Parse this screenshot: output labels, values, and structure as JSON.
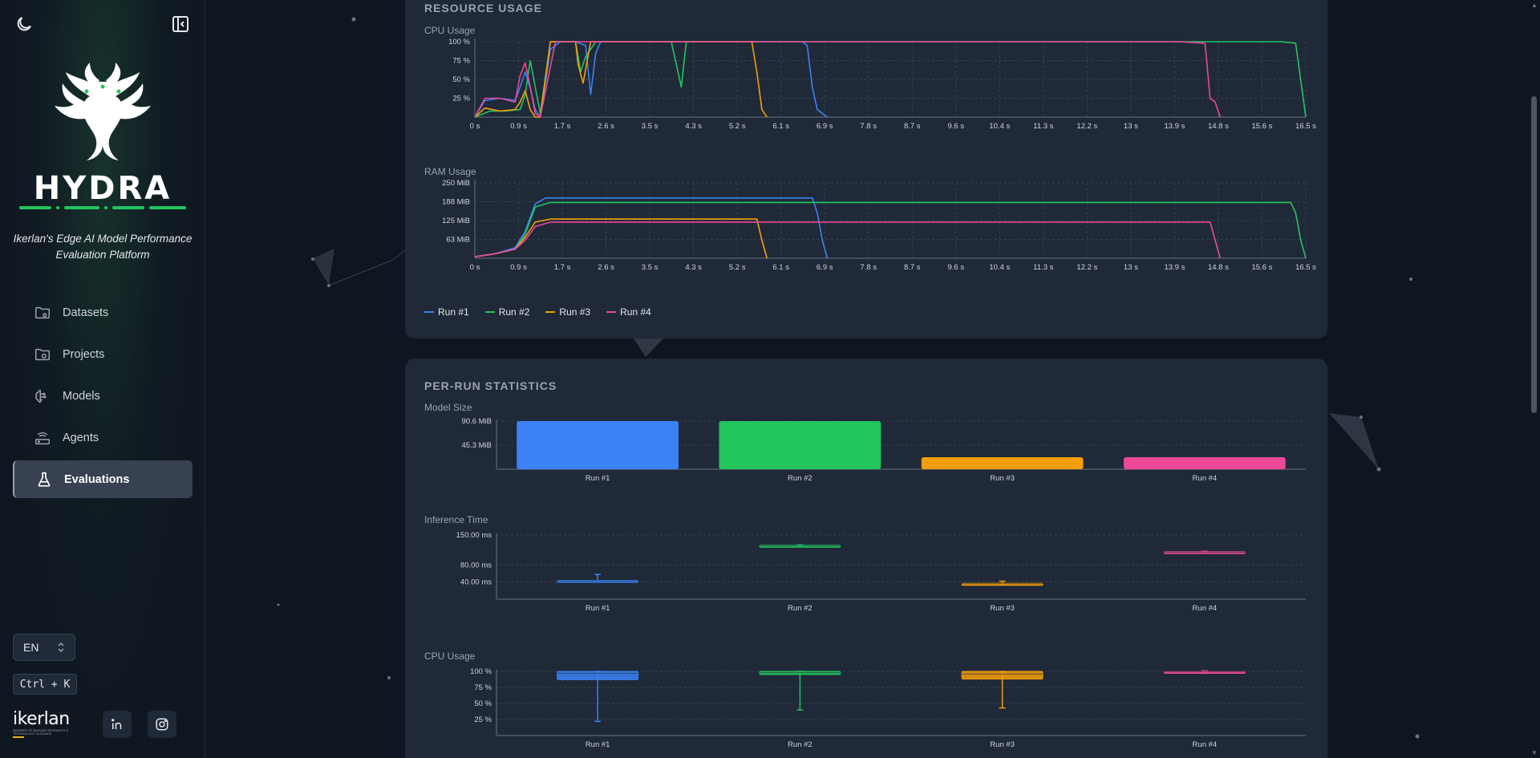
{
  "sidebar": {
    "brand": "HYDRA",
    "tagline": "Ikerlan's Edge AI Model Performance Evaluation Platform",
    "items": [
      {
        "label": "Datasets",
        "icon": "folder-icon",
        "active": false
      },
      {
        "label": "Projects",
        "icon": "folder-settings-icon",
        "active": false
      },
      {
        "label": "Models",
        "icon": "brain-icon",
        "active": false
      },
      {
        "label": "Agents",
        "icon": "router-icon",
        "active": false
      },
      {
        "label": "Evaluations",
        "icon": "flask-icon",
        "active": true
      }
    ],
    "language": "EN",
    "shortcut": "Ctrl + K",
    "org_logo": "ikerlan",
    "org_logo_sub": "MEMBER OF BASQUE RESEARCH & TECHNOLOGY ALLIANCE"
  },
  "resource_usage": {
    "title": "RESOURCE USAGE",
    "cpu_title": "CPU Usage",
    "ram_title": "RAM Usage"
  },
  "per_run": {
    "title": "PER-RUN STATISTICS",
    "model_size_title": "Model Size",
    "inference_title": "Inference Time",
    "cpu_title": "CPU Usage"
  },
  "colors": {
    "run1": "#3b82f6",
    "run2": "#22c55e",
    "run3": "#f59e0b",
    "run4": "#ec4899"
  },
  "chart_data": [
    {
      "type": "line",
      "title": "CPU Usage",
      "x_ticks": [
        "0 s",
        "0.9 s",
        "1.7 s",
        "2.6 s",
        "3.5 s",
        "4.3 s",
        "5.2 s",
        "6.1 s",
        "6.9 s",
        "7.8 s",
        "8.7 s",
        "9.6 s",
        "10.4 s",
        "11.3 s",
        "12.2 s",
        "13 s",
        "13.9 s",
        "14.8 s",
        "15.6 s",
        "16.5 s"
      ],
      "y_ticks": [
        "25 %",
        "50 %",
        "75 %",
        "100 %"
      ],
      "xlim": [
        0,
        16.5
      ],
      "ylim": [
        0,
        100
      ],
      "series": [
        {
          "name": "Run #1",
          "x": [
            0,
            0.2,
            0.5,
            0.8,
            0.9,
            1.0,
            1.1,
            1.2,
            1.3,
            1.5,
            1.7,
            2.0,
            2.2,
            2.3,
            2.4,
            2.5,
            3,
            4,
            5,
            6,
            6.5,
            6.6,
            6.7,
            6.8,
            6.9,
            7.0
          ],
          "y": [
            0,
            22,
            25,
            22,
            40,
            60,
            38,
            10,
            0,
            90,
            100,
            100,
            95,
            30,
            85,
            100,
            100,
            100,
            100,
            100,
            100,
            95,
            40,
            10,
            5,
            0
          ]
        },
        {
          "name": "Run #2",
          "x": [
            0,
            0.3,
            0.6,
            0.9,
            1.0,
            1.1,
            1.2,
            1.3,
            1.5,
            2.0,
            2.1,
            2.2,
            2.4,
            3,
            3.9,
            4.0,
            4.1,
            4.2,
            5,
            8,
            10,
            12,
            14,
            15,
            16,
            16.3,
            16.5
          ],
          "y": [
            0,
            8,
            8,
            10,
            30,
            75,
            40,
            5,
            100,
            100,
            60,
            80,
            100,
            100,
            100,
            70,
            40,
            100,
            100,
            100,
            100,
            100,
            100,
            100,
            100,
            98,
            0
          ]
        },
        {
          "name": "Run #3",
          "x": [
            0,
            0.2,
            0.5,
            0.8,
            0.9,
            1.0,
            1.1,
            1.2,
            1.3,
            1.5,
            2.0,
            2.05,
            2.15,
            2.3,
            2.5,
            3,
            4,
            5,
            5.5,
            5.6,
            5.7,
            5.8
          ],
          "y": [
            0,
            12,
            8,
            10,
            20,
            35,
            10,
            0,
            0,
            100,
            100,
            70,
            45,
            100,
            100,
            100,
            100,
            100,
            100,
            60,
            10,
            0
          ]
        },
        {
          "name": "Run #4",
          "x": [
            0,
            0.2,
            0.5,
            0.8,
            0.9,
            1.0,
            1.1,
            1.2,
            1.3,
            1.6,
            2,
            4,
            6,
            8,
            10,
            12,
            14,
            14.5,
            14.6,
            14.7,
            14.8
          ],
          "y": [
            0,
            25,
            25,
            20,
            55,
            72,
            40,
            5,
            0,
            100,
            100,
            100,
            100,
            100,
            100,
            100,
            100,
            98,
            25,
            20,
            0
          ]
        }
      ]
    },
    {
      "type": "line",
      "title": "RAM Usage",
      "x_ticks": [
        "0 s",
        "0.9 s",
        "1.7 s",
        "2.6 s",
        "3.5 s",
        "4.3 s",
        "5.2 s",
        "6.1 s",
        "6.9 s",
        "7.8 s",
        "8.7 s",
        "9.6 s",
        "10.4 s",
        "11.3 s",
        "12.2 s",
        "13 s",
        "13.9 s",
        "14.8 s",
        "15.6 s",
        "16.5 s"
      ],
      "y_ticks": [
        "63 MiB",
        "125 MiB",
        "188 MiB",
        "250 MiB"
      ],
      "xlim": [
        0,
        16.5
      ],
      "ylim": [
        0,
        250
      ],
      "series": [
        {
          "name": "Run #1",
          "x": [
            0,
            0.4,
            0.8,
            1.0,
            1.2,
            1.4,
            6.7,
            6.8,
            6.9,
            7.0
          ],
          "y": [
            5,
            15,
            35,
            90,
            180,
            200,
            200,
            150,
            60,
            0
          ]
        },
        {
          "name": "Run #2",
          "x": [
            0,
            0.4,
            0.8,
            1.0,
            1.2,
            1.5,
            16.2,
            16.3,
            16.4,
            16.5
          ],
          "y": [
            5,
            15,
            30,
            80,
            170,
            185,
            185,
            150,
            60,
            0
          ]
        },
        {
          "name": "Run #3",
          "x": [
            0,
            0.4,
            0.8,
            1.0,
            1.2,
            1.5,
            5.6,
            5.7,
            5.8
          ],
          "y": [
            5,
            15,
            30,
            70,
            120,
            130,
            130,
            60,
            0
          ]
        },
        {
          "name": "Run #4",
          "x": [
            0,
            0.4,
            0.8,
            1.0,
            1.2,
            1.5,
            14.6,
            14.7,
            14.8
          ],
          "y": [
            5,
            15,
            30,
            60,
            105,
            120,
            120,
            60,
            0
          ]
        }
      ]
    },
    {
      "type": "bar",
      "title": "Model Size",
      "categories": [
        "Run #1",
        "Run #2",
        "Run #3",
        "Run #4"
      ],
      "values": [
        90.6,
        90.6,
        22.6,
        22.6
      ],
      "y_ticks": [
        "45.3 MiB",
        "90.6 MiB"
      ],
      "ylim": [
        0,
        90.6
      ]
    },
    {
      "type": "box",
      "title": "Inference Time",
      "categories": [
        "Run #1",
        "Run #2",
        "Run #3",
        "Run #4"
      ],
      "y_ticks": [
        "40.00 ms",
        "80.00 ms",
        "150.00 ms"
      ],
      "ylim": [
        0,
        150
      ],
      "boxes": [
        {
          "min": 42,
          "q1": 42,
          "median": 43,
          "q3": 44,
          "max": 58
        },
        {
          "min": 124,
          "q1": 124,
          "median": 125,
          "q3": 126,
          "max": 127
        },
        {
          "min": 35,
          "q1": 35,
          "median": 36,
          "q3": 37,
          "max": 42
        },
        {
          "min": 109,
          "q1": 109,
          "median": 110,
          "q3": 111,
          "max": 112
        }
      ]
    },
    {
      "type": "box",
      "title": "CPU Usage",
      "categories": [
        "Run #1",
        "Run #2",
        "Run #3",
        "Run #4"
      ],
      "y_ticks": [
        "25 %",
        "50 %",
        "75 %",
        "100 %"
      ],
      "ylim": [
        0,
        100
      ],
      "boxes": [
        {
          "min": 22,
          "q1": 87,
          "median": 97,
          "q3": 100,
          "max": 100
        },
        {
          "min": 40,
          "q1": 95,
          "median": 98,
          "q3": 100,
          "max": 100
        },
        {
          "min": 43,
          "q1": 88,
          "median": 96,
          "q3": 100,
          "max": 100
        },
        {
          "min": 97,
          "q1": 99,
          "median": 100,
          "q3": 100,
          "max": 101
        }
      ]
    }
  ]
}
